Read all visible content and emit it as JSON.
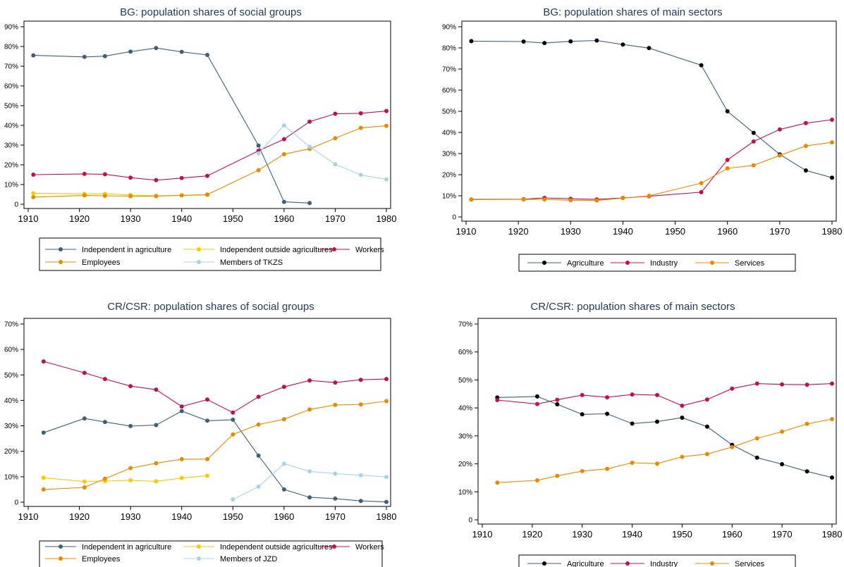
{
  "colors": {
    "Independent in agriculture": "#3f6178",
    "Independent outside agricultures": "#f5cc00",
    "Workers": "#c0124a",
    "Employees": "#e88a00",
    "Members of TKZS": "#a8d3e2",
    "Members of JZD": "#a8d3e2",
    "Agriculture": "#000000",
    "Agriculture_line": "#3f6178",
    "Industry": "#c0124a",
    "Services": "#e88a00"
  },
  "chart_data": [
    {
      "type": "line",
      "title": "BG: population shares of social groups",
      "xlabel": "",
      "ylabel": "",
      "xlim": [
        1910,
        1980
      ],
      "ylim": [
        0,
        90
      ],
      "xticks": [
        "1910",
        "1920",
        "1930",
        "1940",
        "1950",
        "1960",
        "1970",
        "1980"
      ],
      "yticks": [
        "0",
        "10%",
        "20%",
        "30%",
        "40%",
        "50%",
        "60%",
        "70%",
        "80%",
        "90%"
      ],
      "legend": "bottom",
      "series": [
        {
          "name": "Independent in agriculture",
          "x": [
            1911,
            1921,
            1925,
            1930,
            1935,
            1940,
            1945,
            1955,
            1960,
            1965
          ],
          "values": [
            75.5,
            74.7,
            75.1,
            77.4,
            79.2,
            77.3,
            75.7,
            29.8,
            1.2,
            0.6
          ]
        },
        {
          "name": "Independent outside agricultures",
          "x": [
            1911,
            1921,
            1925,
            1930,
            1935,
            1940,
            1945
          ],
          "values": [
            5.6,
            5.3,
            5.3,
            4.7,
            4.3,
            4.5,
            4.7
          ]
        },
        {
          "name": "Workers",
          "x": [
            1911,
            1921,
            1925,
            1930,
            1935,
            1940,
            1945,
            1955,
            1960,
            1965,
            1970,
            1975,
            1980
          ],
          "values": [
            15.0,
            15.4,
            15.2,
            13.5,
            12.2,
            13.3,
            14.4,
            27.1,
            33.0,
            41.9,
            45.9,
            46.1,
            47.3
          ]
        },
        {
          "name": "Employees",
          "x": [
            1911,
            1921,
            1925,
            1930,
            1935,
            1940,
            1945,
            1955,
            1960,
            1965,
            1970,
            1975,
            1980
          ],
          "values": [
            3.6,
            4.5,
            4.3,
            4.1,
            4.1,
            4.5,
            4.9,
            17.3,
            25.4,
            28.1,
            33.5,
            38.7,
            39.8
          ]
        },
        {
          "name": "Members of TKZS",
          "x": [
            1955,
            1960,
            1965,
            1970,
            1975,
            1980
          ],
          "values": [
            25.8,
            40.0,
            29.2,
            20.3,
            14.9,
            12.6
          ]
        }
      ],
      "legend_layout": [
        [
          0,
          1,
          2
        ],
        [
          3,
          4
        ]
      ]
    },
    {
      "type": "line",
      "title": "BG: population shares of main sectors",
      "xlabel": "",
      "ylabel": "",
      "xlim": [
        1910,
        1980
      ],
      "ylim": [
        0,
        90
      ],
      "xticks": [
        "1910",
        "1920",
        "1930",
        "1940",
        "1950",
        "1960",
        "1970",
        "1980"
      ],
      "yticks": [
        "0",
        "10%",
        "20%",
        "30%",
        "40%",
        "50%",
        "60%",
        "70%",
        "80%",
        "90%"
      ],
      "legend": "bottom",
      "series": [
        {
          "name": "Agriculture",
          "x": [
            1911,
            1921,
            1925,
            1930,
            1935,
            1940,
            1945,
            1955,
            1960,
            1965,
            1970,
            1975,
            1980
          ],
          "values": [
            83.2,
            83.0,
            82.3,
            83.1,
            83.5,
            81.6,
            79.9,
            71.8,
            50.0,
            39.8,
            29.6,
            22.0,
            18.6
          ]
        },
        {
          "name": "Industry",
          "x": [
            1911,
            1921,
            1925,
            1930,
            1935,
            1940,
            1945,
            1955,
            1960,
            1965,
            1970,
            1975,
            1980
          ],
          "values": [
            8.3,
            8.4,
            9.0,
            8.6,
            8.3,
            9.0,
            9.8,
            11.7,
            27.0,
            35.7,
            41.4,
            44.4,
            46.0
          ]
        },
        {
          "name": "Services",
          "x": [
            1911,
            1921,
            1925,
            1930,
            1935,
            1940,
            1945,
            1955,
            1960,
            1965,
            1970,
            1975,
            1980
          ],
          "values": [
            8.2,
            8.3,
            8.3,
            7.9,
            7.8,
            8.9,
            10.0,
            16.0,
            23.0,
            24.4,
            29.1,
            33.6,
            35.3
          ]
        }
      ],
      "legend_layout": [
        [
          0,
          1,
          2
        ]
      ]
    },
    {
      "type": "line",
      "title": "CR/CSR: population shares of social groups",
      "xlabel": "",
      "ylabel": "",
      "xlim": [
        1910,
        1980
      ],
      "ylim": [
        0,
        70
      ],
      "xticks": [
        "1910",
        "1920",
        "1930",
        "1940",
        "1950",
        "1960",
        "1970",
        "1980"
      ],
      "yticks": [
        "0",
        "10%",
        "20%",
        "30%",
        "40%",
        "50%",
        "60%",
        "70%"
      ],
      "legend": "bottom",
      "series": [
        {
          "name": "Independent in agriculture",
          "x": [
            1913,
            1921,
            1925,
            1930,
            1935,
            1940,
            1945,
            1950,
            1955,
            1960,
            1965,
            1970,
            1975,
            1980
          ],
          "values": [
            27.3,
            32.9,
            31.5,
            29.9,
            30.3,
            35.8,
            32.0,
            32.4,
            18.3,
            5.0,
            1.9,
            1.4,
            0.5,
            0.1
          ]
        },
        {
          "name": "Independent outside agricultures",
          "x": [
            1913,
            1921,
            1925,
            1930,
            1935,
            1940,
            1945
          ],
          "values": [
            9.6,
            8.1,
            8.3,
            8.6,
            8.2,
            9.5,
            10.4
          ]
        },
        {
          "name": "Workers",
          "x": [
            1913,
            1921,
            1925,
            1930,
            1935,
            1940,
            1945,
            1950,
            1955,
            1960,
            1965,
            1970,
            1975,
            1980
          ],
          "values": [
            55.3,
            50.8,
            48.4,
            45.6,
            44.2,
            37.6,
            40.3,
            35.2,
            41.4,
            45.3,
            47.8,
            47.0,
            48.1,
            48.4
          ]
        },
        {
          "name": "Employees",
          "x": [
            1913,
            1921,
            1925,
            1930,
            1935,
            1940,
            1945,
            1950,
            1955,
            1960,
            1965,
            1970,
            1975,
            1980
          ],
          "values": [
            5.0,
            5.8,
            9.2,
            13.4,
            15.3,
            16.9,
            16.9,
            26.6,
            30.5,
            32.6,
            36.4,
            38.2,
            38.4,
            39.7
          ]
        },
        {
          "name": "Members of JZD",
          "x": [
            1950,
            1955,
            1960,
            1965,
            1970,
            1975,
            1980
          ],
          "values": [
            1.1,
            6.1,
            15.1,
            12.1,
            11.2,
            10.6,
            9.9
          ]
        }
      ],
      "legend_layout": [
        [
          0,
          1,
          2
        ],
        [
          3,
          4
        ]
      ]
    },
    {
      "type": "line",
      "title": "CR/CSR: population shares of main sectors",
      "xlabel": "",
      "ylabel": "",
      "xlim": [
        1910,
        1980
      ],
      "ylim": [
        0,
        70
      ],
      "xticks": [
        "1910",
        "1920",
        "1930",
        "1940",
        "1950",
        "1960",
        "1970",
        "1980"
      ],
      "yticks": [
        "0",
        "10%",
        "20%",
        "30%",
        "40%",
        "50%",
        "60%",
        "70%"
      ],
      "legend": "bottom",
      "series": [
        {
          "name": "Agriculture",
          "x": [
            1913,
            1921,
            1925,
            1930,
            1935,
            1940,
            1945,
            1950,
            1955,
            1960,
            1965,
            1970,
            1975,
            1980
          ],
          "values": [
            43.7,
            44.1,
            41.3,
            37.7,
            37.9,
            34.4,
            35.1,
            36.5,
            33.3,
            26.8,
            22.2,
            19.9,
            17.3,
            15.1
          ]
        },
        {
          "name": "Industry",
          "x": [
            1913,
            1921,
            1925,
            1930,
            1935,
            1940,
            1945,
            1950,
            1955,
            1960,
            1965,
            1970,
            1975,
            1980
          ],
          "values": [
            42.8,
            41.4,
            42.9,
            44.6,
            43.8,
            44.8,
            44.6,
            40.8,
            43.0,
            46.9,
            48.7,
            48.4,
            48.3,
            48.7
          ]
        },
        {
          "name": "Services",
          "x": [
            1913,
            1921,
            1925,
            1930,
            1935,
            1940,
            1945,
            1950,
            1955,
            1960,
            1965,
            1970,
            1975,
            1980
          ],
          "values": [
            13.3,
            14.1,
            15.7,
            17.4,
            18.2,
            20.4,
            20.1,
            22.5,
            23.5,
            26.0,
            29.1,
            31.5,
            34.3,
            36.0
          ]
        }
      ],
      "legend_layout": [
        [
          0,
          1,
          2
        ]
      ]
    }
  ]
}
